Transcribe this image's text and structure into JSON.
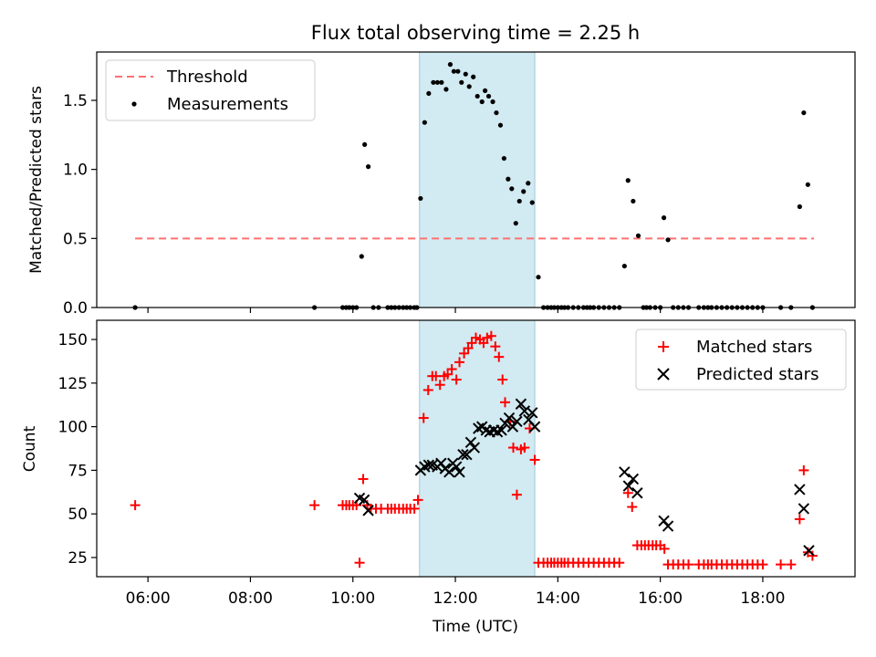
{
  "title": "Flux total observing time = 2.25 h",
  "colors": {
    "threshold": "#ff7070",
    "measurement": "#000000",
    "matched": "#ff0000",
    "predicted": "#000000",
    "window": "#add8e6"
  },
  "chart_data": [
    {
      "type": "scatter",
      "ylabel": "Matched/Predicted stars",
      "xlim": [
        5.0,
        19.8
      ],
      "ylim": [
        0,
        1.85
      ],
      "yticks": [
        0.0,
        0.5,
        1.0,
        1.5
      ],
      "ytick_labels": [
        "0.0",
        "0.5",
        "1.0",
        "1.5"
      ],
      "shaded_window": [
        11.3,
        13.55
      ],
      "legend": {
        "position": "upper-left",
        "entries": [
          "Threshold",
          "Measurements"
        ]
      },
      "threshold": {
        "name": "Threshold",
        "y": 0.5,
        "x": [
          5.75,
          19.0
        ]
      },
      "series": [
        {
          "name": "Measurements",
          "points": [
            [
              5.75,
              0
            ],
            [
              9.25,
              0
            ],
            [
              9.8,
              0
            ],
            [
              9.87,
              0
            ],
            [
              9.93,
              0
            ],
            [
              10.0,
              0
            ],
            [
              10.07,
              0
            ],
            [
              10.17,
              0.37
            ],
            [
              10.23,
              1.18
            ],
            [
              10.3,
              1.02
            ],
            [
              10.4,
              0
            ],
            [
              10.5,
              0
            ],
            [
              10.68,
              0
            ],
            [
              10.75,
              0
            ],
            [
              10.82,
              0
            ],
            [
              10.9,
              0
            ],
            [
              10.98,
              0
            ],
            [
              11.05,
              0
            ],
            [
              11.12,
              0
            ],
            [
              11.2,
              0
            ],
            [
              11.25,
              0
            ],
            [
              11.32,
              0.79
            ],
            [
              11.4,
              1.34
            ],
            [
              11.48,
              1.55
            ],
            [
              11.57,
              1.63
            ],
            [
              11.65,
              1.63
            ],
            [
              11.73,
              1.63
            ],
            [
              11.82,
              1.58
            ],
            [
              11.9,
              1.76
            ],
            [
              11.97,
              1.71
            ],
            [
              12.05,
              1.71
            ],
            [
              12.12,
              1.63
            ],
            [
              12.2,
              1.69
            ],
            [
              12.27,
              1.6
            ],
            [
              12.35,
              1.67
            ],
            [
              12.43,
              1.53
            ],
            [
              12.52,
              1.49
            ],
            [
              12.58,
              1.57
            ],
            [
              12.65,
              1.53
            ],
            [
              12.73,
              1.49
            ],
            [
              12.8,
              1.41
            ],
            [
              12.88,
              1.32
            ],
            [
              12.95,
              1.08
            ],
            [
              13.03,
              0.93
            ],
            [
              13.1,
              0.86
            ],
            [
              13.18,
              0.61
            ],
            [
              13.25,
              0.77
            ],
            [
              13.33,
              0.84
            ],
            [
              13.42,
              0.9
            ],
            [
              13.5,
              0.76
            ],
            [
              13.62,
              0.22
            ],
            [
              13.72,
              0
            ],
            [
              13.8,
              0
            ],
            [
              13.87,
              0
            ],
            [
              13.93,
              0
            ],
            [
              14.0,
              0
            ],
            [
              14.07,
              0
            ],
            [
              14.13,
              0
            ],
            [
              14.2,
              0
            ],
            [
              14.3,
              0
            ],
            [
              14.4,
              0
            ],
            [
              14.5,
              0
            ],
            [
              14.57,
              0
            ],
            [
              14.63,
              0
            ],
            [
              14.7,
              0
            ],
            [
              14.8,
              0
            ],
            [
              14.9,
              0
            ],
            [
              15.0,
              0
            ],
            [
              15.1,
              0
            ],
            [
              15.2,
              0
            ],
            [
              15.3,
              0.3
            ],
            [
              15.37,
              0.92
            ],
            [
              15.47,
              0.77
            ],
            [
              15.57,
              0.52
            ],
            [
              15.67,
              0
            ],
            [
              15.73,
              0
            ],
            [
              15.8,
              0
            ],
            [
              15.9,
              0
            ],
            [
              16.0,
              0
            ],
            [
              16.07,
              0.65
            ],
            [
              16.15,
              0.49
            ],
            [
              16.25,
              0
            ],
            [
              16.35,
              0
            ],
            [
              16.45,
              0
            ],
            [
              16.55,
              0
            ],
            [
              16.75,
              0
            ],
            [
              16.85,
              0
            ],
            [
              16.93,
              0
            ],
            [
              17.0,
              0
            ],
            [
              17.1,
              0
            ],
            [
              17.2,
              0
            ],
            [
              17.3,
              0
            ],
            [
              17.4,
              0
            ],
            [
              17.5,
              0
            ],
            [
              17.6,
              0
            ],
            [
              17.7,
              0
            ],
            [
              17.8,
              0
            ],
            [
              17.9,
              0
            ],
            [
              18.0,
              0
            ],
            [
              18.35,
              0
            ],
            [
              18.55,
              0
            ],
            [
              18.72,
              0.73
            ],
            [
              18.8,
              1.41
            ],
            [
              18.88,
              0.89
            ],
            [
              18.97,
              0
            ]
          ]
        }
      ]
    },
    {
      "type": "scatter",
      "xlabel": "Time (UTC)",
      "ylabel": "Count",
      "xlim": [
        5.0,
        19.8
      ],
      "ylim": [
        14,
        161
      ],
      "yticks": [
        25,
        50,
        75,
        100,
        125,
        150
      ],
      "ytick_labels": [
        "25",
        "50",
        "75",
        "100",
        "125",
        "150"
      ],
      "xticks": [
        6,
        8,
        10,
        12,
        14,
        16,
        18
      ],
      "xtick_labels": [
        "06:00",
        "08:00",
        "10:00",
        "12:00",
        "14:00",
        "16:00",
        "18:00"
      ],
      "shaded_window": [
        11.3,
        13.55
      ],
      "legend": {
        "position": "upper-right",
        "entries": [
          "Matched stars",
          "Predicted stars"
        ]
      },
      "series": [
        {
          "name": "Matched stars",
          "points": [
            [
              5.75,
              55
            ],
            [
              9.25,
              55
            ],
            [
              9.8,
              55
            ],
            [
              9.87,
              55
            ],
            [
              9.93,
              55
            ],
            [
              10.0,
              55
            ],
            [
              10.07,
              55
            ],
            [
              10.13,
              22
            ],
            [
              10.2,
              70
            ],
            [
              10.28,
              55
            ],
            [
              10.35,
              53
            ],
            [
              10.45,
              53
            ],
            [
              10.55,
              53
            ],
            [
              10.68,
              53
            ],
            [
              10.75,
              53
            ],
            [
              10.82,
              53
            ],
            [
              10.9,
              53
            ],
            [
              10.98,
              53
            ],
            [
              11.05,
              53
            ],
            [
              11.12,
              53
            ],
            [
              11.2,
              53
            ],
            [
              11.27,
              58
            ],
            [
              11.38,
              105
            ],
            [
              11.47,
              121
            ],
            [
              11.55,
              129
            ],
            [
              11.62,
              129
            ],
            [
              11.7,
              124
            ],
            [
              11.78,
              129
            ],
            [
              11.85,
              130
            ],
            [
              11.93,
              133
            ],
            [
              12.02,
              127
            ],
            [
              12.08,
              137
            ],
            [
              12.17,
              142
            ],
            [
              12.25,
              145
            ],
            [
              12.32,
              148
            ],
            [
              12.4,
              151
            ],
            [
              12.48,
              150
            ],
            [
              12.55,
              148
            ],
            [
              12.62,
              151
            ],
            [
              12.7,
              152
            ],
            [
              12.78,
              146
            ],
            [
              12.85,
              140
            ],
            [
              12.92,
              127
            ],
            [
              12.97,
              114
            ],
            [
              13.07,
              103
            ],
            [
              13.13,
              88
            ],
            [
              13.2,
              61
            ],
            [
              13.28,
              87
            ],
            [
              13.35,
              88
            ],
            [
              13.45,
              99
            ],
            [
              13.55,
              81
            ],
            [
              13.62,
              22
            ],
            [
              13.72,
              22
            ],
            [
              13.8,
              22
            ],
            [
              13.87,
              22
            ],
            [
              13.93,
              22
            ],
            [
              14.0,
              22
            ],
            [
              14.07,
              22
            ],
            [
              14.13,
              22
            ],
            [
              14.2,
              22
            ],
            [
              14.3,
              22
            ],
            [
              14.4,
              22
            ],
            [
              14.5,
              22
            ],
            [
              14.6,
              22
            ],
            [
              14.7,
              22
            ],
            [
              14.8,
              22
            ],
            [
              14.9,
              22
            ],
            [
              15.0,
              22
            ],
            [
              15.1,
              22
            ],
            [
              15.2,
              22
            ],
            [
              15.37,
              62
            ],
            [
              15.45,
              54
            ],
            [
              15.55,
              32
            ],
            [
              15.63,
              32
            ],
            [
              15.7,
              32
            ],
            [
              15.77,
              32
            ],
            [
              15.85,
              32
            ],
            [
              15.92,
              32
            ],
            [
              16.0,
              32
            ],
            [
              16.08,
              30
            ],
            [
              16.15,
              21
            ],
            [
              16.25,
              21
            ],
            [
              16.35,
              21
            ],
            [
              16.45,
              21
            ],
            [
              16.55,
              21
            ],
            [
              16.75,
              21
            ],
            [
              16.85,
              21
            ],
            [
              16.93,
              21
            ],
            [
              17.0,
              21
            ],
            [
              17.1,
              21
            ],
            [
              17.2,
              21
            ],
            [
              17.3,
              21
            ],
            [
              17.4,
              21
            ],
            [
              17.5,
              21
            ],
            [
              17.6,
              21
            ],
            [
              17.7,
              21
            ],
            [
              17.8,
              21
            ],
            [
              17.9,
              21
            ],
            [
              18.0,
              21
            ],
            [
              18.35,
              21
            ],
            [
              18.55,
              21
            ],
            [
              18.72,
              47
            ],
            [
              18.8,
              75
            ],
            [
              18.88,
              28
            ],
            [
              18.97,
              26
            ]
          ]
        },
        {
          "name": "Predicted stars",
          "points": [
            [
              10.13,
              59
            ],
            [
              10.22,
              58
            ],
            [
              10.3,
              52
            ],
            [
              11.32,
              75
            ],
            [
              11.4,
              77
            ],
            [
              11.48,
              78
            ],
            [
              11.55,
              78
            ],
            [
              11.65,
              77
            ],
            [
              11.72,
              79
            ],
            [
              11.8,
              76
            ],
            [
              11.88,
              74
            ],
            [
              11.95,
              79
            ],
            [
              12.02,
              77
            ],
            [
              12.08,
              74
            ],
            [
              12.15,
              84
            ],
            [
              12.22,
              84
            ],
            [
              12.3,
              91
            ],
            [
              12.37,
              88
            ],
            [
              12.45,
              99
            ],
            [
              12.52,
              100
            ],
            [
              12.6,
              98
            ],
            [
              12.67,
              97
            ],
            [
              12.75,
              98
            ],
            [
              12.82,
              97
            ],
            [
              12.9,
              98
            ],
            [
              12.97,
              102
            ],
            [
              13.05,
              105
            ],
            [
              13.12,
              100
            ],
            [
              13.2,
              103
            ],
            [
              13.28,
              113
            ],
            [
              13.35,
              109
            ],
            [
              13.43,
              104
            ],
            [
              13.5,
              108
            ],
            [
              13.55,
              100
            ],
            [
              15.3,
              74
            ],
            [
              15.38,
              66
            ],
            [
              15.47,
              70
            ],
            [
              15.55,
              62
            ],
            [
              16.07,
              46
            ],
            [
              16.15,
              43
            ],
            [
              18.72,
              64
            ],
            [
              18.8,
              53
            ],
            [
              18.9,
              29
            ]
          ]
        }
      ]
    }
  ]
}
